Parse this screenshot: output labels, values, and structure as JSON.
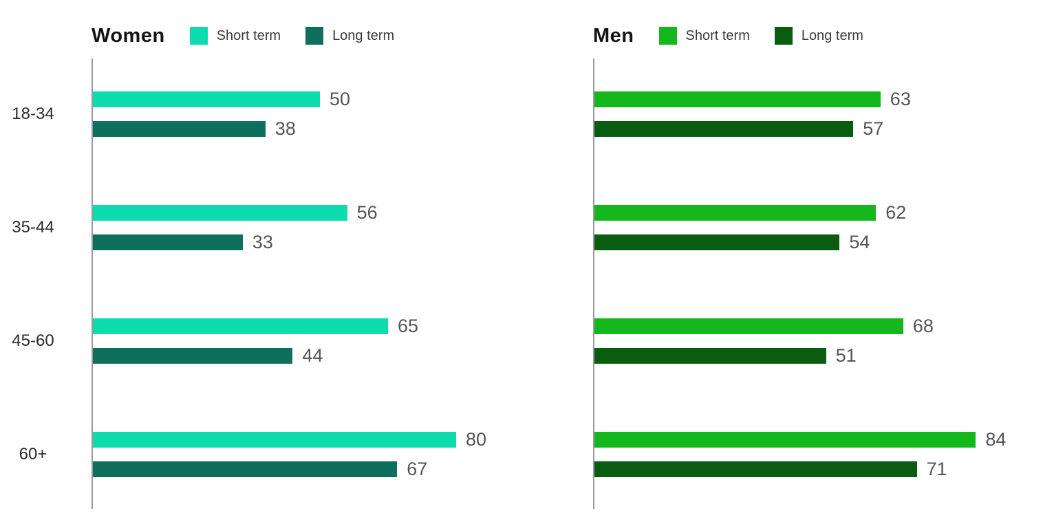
{
  "style": {
    "background": "#ffffff",
    "axis_color": "#9b9b9b",
    "title_color": "#141414",
    "legend_label_color": "#3c3c3c",
    "value_label_color": "#555555",
    "category_label_color": "#2a2a2a"
  },
  "chart_data": [
    {
      "type": "bar",
      "orientation": "horizontal",
      "title": "Women",
      "categories": [
        "18-34",
        "35-44",
        "45-60",
        "60+"
      ],
      "series": [
        {
          "name": "Short term",
          "color": "#0cdcae",
          "values": [
            50,
            56,
            65,
            80
          ]
        },
        {
          "name": "Long term",
          "color": "#0d6f5c",
          "values": [
            38,
            33,
            44,
            67
          ]
        }
      ],
      "xlim": [
        0,
        100
      ],
      "grid": false,
      "value_labels": true,
      "legend_position": "top"
    },
    {
      "type": "bar",
      "orientation": "horizontal",
      "title": "Men",
      "categories": [
        "18-34",
        "35-44",
        "45-60",
        "60+"
      ],
      "series": [
        {
          "name": "Short term",
          "color": "#15b81c",
          "values": [
            63,
            62,
            68,
            84
          ]
        },
        {
          "name": "Long term",
          "color": "#0a5c10",
          "values": [
            57,
            54,
            51,
            71
          ]
        }
      ],
      "xlim": [
        0,
        100
      ],
      "grid": false,
      "value_labels": true,
      "legend_position": "top"
    }
  ]
}
